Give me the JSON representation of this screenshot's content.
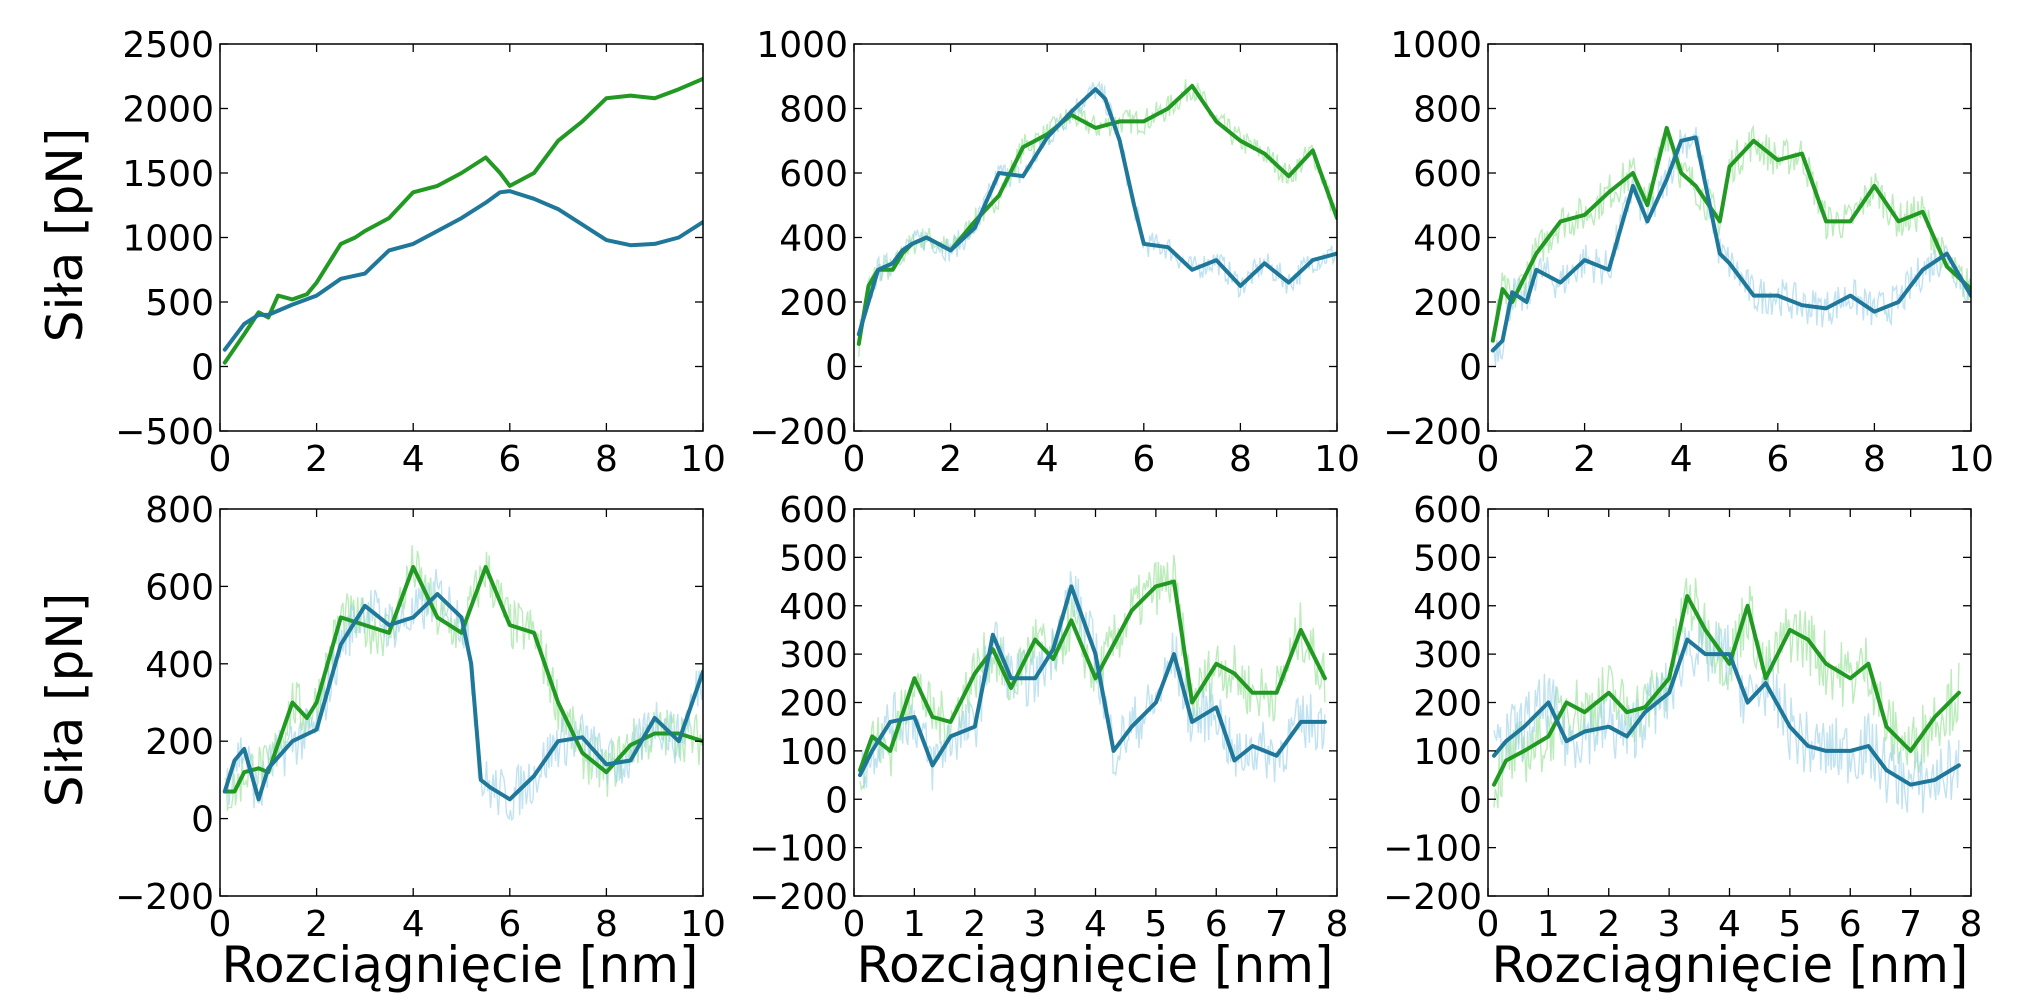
{
  "figure": {
    "ylabel": "Siła [pN]",
    "xlabel": "Rozciągnięcie [nm]"
  },
  "colors": {
    "green": "#229922",
    "blue": "#1f7799",
    "green_raw": "#90e090",
    "blue_raw": "#98d0e8"
  },
  "chart_data": [
    {
      "type": "line",
      "xlim": [
        0,
        10
      ],
      "ylim": [
        -500,
        2500
      ],
      "xticks": [
        0,
        2,
        4,
        6,
        8,
        10
      ],
      "yticks": [
        -500,
        0,
        500,
        1000,
        1500,
        2000,
        2500
      ],
      "xlabel": "",
      "ylabel": "Siła [pN]",
      "raw_noise": [
        0,
        0
      ],
      "series": [
        {
          "color": "green",
          "x": [
            0.1,
            0.5,
            0.8,
            1.0,
            1.2,
            1.5,
            1.8,
            2.0,
            2.5,
            2.8,
            3.0,
            3.5,
            4.0,
            4.5,
            5.0,
            5.5,
            5.8,
            6.0,
            6.5,
            7.0,
            7.5,
            8.0,
            8.5,
            9.0,
            9.5,
            10.0
          ],
          "values": [
            30,
            250,
            420,
            380,
            550,
            520,
            560,
            650,
            950,
            1000,
            1050,
            1150,
            1350,
            1400,
            1500,
            1620,
            1500,
            1400,
            1500,
            1750,
            1900,
            2080,
            2100,
            2080,
            2150,
            2230
          ]
        },
        {
          "color": "blue",
          "x": [
            0.1,
            0.5,
            0.8,
            1.0,
            1.5,
            2.0,
            2.5,
            3.0,
            3.5,
            4.0,
            4.5,
            5.0,
            5.5,
            5.8,
            6.0,
            6.5,
            7.0,
            7.5,
            8.0,
            8.5,
            9.0,
            9.5,
            10.0
          ],
          "values": [
            130,
            330,
            400,
            400,
            480,
            550,
            680,
            720,
            900,
            950,
            1050,
            1150,
            1270,
            1350,
            1360,
            1300,
            1220,
            1100,
            980,
            940,
            950,
            1000,
            1120
          ]
        }
      ]
    },
    {
      "type": "line",
      "xlim": [
        0,
        10
      ],
      "ylim": [
        -200,
        1000
      ],
      "xticks": [
        0,
        2,
        4,
        6,
        8,
        10
      ],
      "yticks": [
        -200,
        0,
        200,
        400,
        600,
        800,
        1000
      ],
      "xlabel": "",
      "ylabel": "",
      "raw_noise": [
        40,
        40
      ],
      "series": [
        {
          "color": "green",
          "x": [
            0.1,
            0.3,
            0.5,
            0.8,
            1.0,
            1.2,
            1.5,
            2.0,
            2.5,
            3.0,
            3.5,
            4.0,
            4.5,
            5.0,
            5.5,
            6.0,
            6.5,
            7.0,
            7.5,
            8.0,
            8.5,
            9.0,
            9.5,
            10.0
          ],
          "values": [
            70,
            250,
            300,
            300,
            350,
            380,
            400,
            360,
            450,
            530,
            680,
            720,
            780,
            740,
            760,
            760,
            800,
            870,
            760,
            700,
            660,
            590,
            670,
            460
          ]
        },
        {
          "color": "blue",
          "x": [
            0.1,
            0.3,
            0.5,
            0.8,
            1.0,
            1.2,
            1.5,
            2.0,
            2.5,
            3.0,
            3.5,
            4.0,
            4.5,
            5.0,
            5.2,
            5.5,
            5.8,
            6.0,
            6.5,
            7.0,
            7.5,
            8.0,
            8.5,
            9.0,
            9.5,
            10.0
          ],
          "values": [
            100,
            200,
            300,
            320,
            360,
            380,
            400,
            360,
            430,
            600,
            590,
            710,
            790,
            860,
            830,
            700,
            500,
            380,
            370,
            300,
            330,
            250,
            320,
            260,
            330,
            350
          ]
        }
      ]
    },
    {
      "type": "line",
      "xlim": [
        0,
        10
      ],
      "ylim": [
        -200,
        1000
      ],
      "xticks": [
        0,
        2,
        4,
        6,
        8,
        10
      ],
      "yticks": [
        -200,
        0,
        200,
        400,
        600,
        800,
        1000
      ],
      "xlabel": "",
      "ylabel": "",
      "raw_noise": [
        60,
        60
      ],
      "series": [
        {
          "color": "green",
          "x": [
            0.1,
            0.3,
            0.5,
            0.8,
            1.0,
            1.5,
            2.0,
            2.5,
            3.0,
            3.3,
            3.7,
            4.0,
            4.3,
            4.8,
            5.0,
            5.5,
            6.0,
            6.5,
            7.0,
            7.5,
            8.0,
            8.5,
            9.0,
            9.5,
            10.0
          ],
          "values": [
            80,
            240,
            200,
            290,
            350,
            450,
            470,
            540,
            600,
            500,
            740,
            600,
            560,
            450,
            620,
            700,
            640,
            660,
            450,
            450,
            560,
            450,
            480,
            310,
            240
          ]
        },
        {
          "color": "blue",
          "x": [
            0.1,
            0.3,
            0.5,
            0.8,
            1.0,
            1.5,
            2.0,
            2.5,
            3.0,
            3.3,
            3.7,
            4.0,
            4.3,
            4.8,
            5.0,
            5.5,
            6.0,
            6.5,
            7.0,
            7.5,
            8.0,
            8.5,
            9.0,
            9.5,
            10.0
          ],
          "values": [
            50,
            80,
            230,
            200,
            300,
            260,
            330,
            300,
            560,
            450,
            580,
            700,
            710,
            350,
            320,
            220,
            220,
            190,
            180,
            220,
            170,
            200,
            300,
            350,
            220
          ]
        }
      ]
    },
    {
      "type": "line",
      "xlim": [
        0,
        10
      ],
      "ylim": [
        -200,
        800
      ],
      "xticks": [
        0,
        2,
        4,
        6,
        8,
        10
      ],
      "yticks": [
        -200,
        0,
        200,
        400,
        600,
        800
      ],
      "xlabel": "Rozciągnięcie [nm]",
      "ylabel": "Siła [pN]",
      "raw_noise": [
        70,
        70
      ],
      "series": [
        {
          "color": "green",
          "x": [
            0.1,
            0.3,
            0.5,
            0.8,
            1.0,
            1.5,
            1.8,
            2.0,
            2.5,
            3.0,
            3.5,
            4.0,
            4.5,
            5.0,
            5.5,
            6.0,
            6.5,
            7.0,
            7.5,
            8.0,
            8.5,
            9.0,
            9.5,
            10.0
          ],
          "values": [
            70,
            70,
            120,
            130,
            120,
            300,
            260,
            300,
            520,
            500,
            480,
            650,
            520,
            480,
            650,
            500,
            480,
            300,
            170,
            120,
            190,
            220,
            220,
            200
          ]
        },
        {
          "color": "blue",
          "x": [
            0.1,
            0.3,
            0.5,
            0.8,
            1.0,
            1.5,
            2.0,
            2.5,
            3.0,
            3.5,
            4.0,
            4.5,
            5.0,
            5.2,
            5.4,
            5.6,
            6.0,
            6.5,
            7.0,
            7.5,
            8.0,
            8.5,
            9.0,
            9.5,
            10.0
          ],
          "values": [
            70,
            150,
            180,
            50,
            130,
            200,
            230,
            450,
            550,
            500,
            520,
            580,
            520,
            400,
            100,
            80,
            50,
            110,
            200,
            210,
            140,
            150,
            260,
            200,
            380
          ]
        }
      ]
    },
    {
      "type": "line",
      "xlim": [
        0,
        8
      ],
      "ylim": [
        -200,
        600
      ],
      "xticks": [
        0,
        1,
        2,
        3,
        4,
        5,
        6,
        7,
        8
      ],
      "yticks": [
        -200,
        -100,
        0,
        100,
        200,
        300,
        400,
        500,
        600
      ],
      "xlabel": "Rozciągnięcie [nm]",
      "ylabel": "",
      "raw_noise": [
        60,
        60
      ],
      "series": [
        {
          "color": "green",
          "x": [
            0.1,
            0.3,
            0.6,
            1.0,
            1.3,
            1.6,
            2.0,
            2.3,
            2.6,
            3.0,
            3.3,
            3.6,
            4.0,
            4.3,
            4.6,
            5.0,
            5.3,
            5.6,
            6.0,
            6.3,
            6.6,
            7.0,
            7.4,
            7.8
          ],
          "values": [
            60,
            130,
            100,
            250,
            170,
            160,
            260,
            310,
            230,
            330,
            290,
            370,
            250,
            320,
            390,
            440,
            450,
            200,
            280,
            260,
            220,
            220,
            350,
            250
          ]
        },
        {
          "color": "blue",
          "x": [
            0.1,
            0.3,
            0.6,
            1.0,
            1.3,
            1.6,
            2.0,
            2.3,
            2.6,
            3.0,
            3.3,
            3.6,
            4.0,
            4.3,
            4.6,
            5.0,
            5.3,
            5.6,
            6.0,
            6.3,
            6.6,
            7.0,
            7.4,
            7.8
          ],
          "values": [
            50,
            100,
            160,
            170,
            70,
            130,
            150,
            340,
            250,
            250,
            310,
            440,
            300,
            100,
            150,
            200,
            300,
            160,
            190,
            80,
            110,
            90,
            160,
            160
          ]
        }
      ]
    },
    {
      "type": "line",
      "xlim": [
        0,
        8
      ],
      "ylim": [
        -200,
        600
      ],
      "xticks": [
        0,
        1,
        2,
        3,
        4,
        5,
        6,
        7,
        8
      ],
      "yticks": [
        -200,
        -100,
        0,
        100,
        200,
        300,
        400,
        500,
        600
      ],
      "xlabel": "Rozciągnięcie [nm]",
      "ylabel": "",
      "raw_noise": [
        70,
        70
      ],
      "series": [
        {
          "color": "green",
          "x": [
            0.1,
            0.3,
            0.6,
            1.0,
            1.3,
            1.6,
            2.0,
            2.3,
            2.6,
            3.0,
            3.3,
            3.6,
            4.0,
            4.3,
            4.6,
            5.0,
            5.3,
            5.6,
            6.0,
            6.3,
            6.6,
            7.0,
            7.4,
            7.8
          ],
          "values": [
            30,
            80,
            100,
            130,
            200,
            180,
            220,
            180,
            190,
            250,
            420,
            350,
            280,
            400,
            250,
            350,
            330,
            280,
            250,
            280,
            150,
            100,
            170,
            220
          ]
        },
        {
          "color": "blue",
          "x": [
            0.1,
            0.3,
            0.6,
            1.0,
            1.3,
            1.6,
            2.0,
            2.3,
            2.6,
            3.0,
            3.3,
            3.6,
            4.0,
            4.3,
            4.6,
            5.0,
            5.3,
            5.6,
            6.0,
            6.3,
            6.6,
            7.0,
            7.4,
            7.8
          ],
          "values": [
            90,
            120,
            150,
            200,
            120,
            140,
            150,
            130,
            180,
            220,
            330,
            300,
            300,
            200,
            240,
            150,
            110,
            100,
            100,
            110,
            60,
            30,
            40,
            70
          ]
        }
      ]
    }
  ]
}
